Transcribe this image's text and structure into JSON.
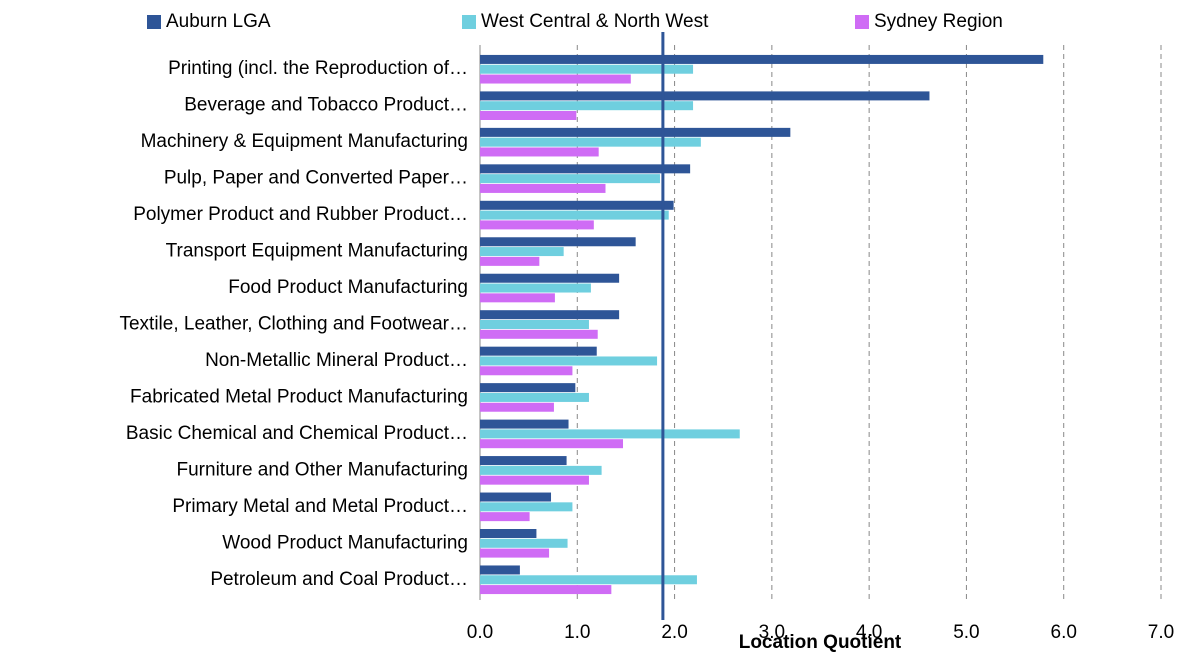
{
  "chart_data": {
    "type": "hbar",
    "x_label": "Location Quotient",
    "categories": [
      "Printing (incl. the Reproduction of…",
      "Beverage and Tobacco Product…",
      "Machinery & Equipment Manufacturing",
      "Pulp, Paper and Converted Paper…",
      "Polymer Product and Rubber Product…",
      "Transport Equipment Manufacturing",
      "Food Product Manufacturing",
      "Textile, Leather, Clothing and Footwear…",
      "Non-Metallic Mineral Product…",
      "Fabricated Metal Product Manufacturing",
      "Basic Chemical and Chemical Product…",
      "Furniture and Other Manufacturing",
      "Primary Metal and Metal Product…",
      "Wood Product Manufacturing",
      "Petroleum and Coal Product…"
    ],
    "series": [
      {
        "name": "Auburn LGA",
        "color": "#2e5597",
        "values": [
          5.79,
          4.62,
          3.19,
          2.16,
          1.99,
          1.6,
          1.43,
          1.43,
          1.2,
          0.98,
          0.91,
          0.89,
          0.73,
          0.58,
          0.41
        ]
      },
      {
        "name": "West Central & North West",
        "color": "#6fcfdf",
        "values": [
          2.19,
          2.19,
          2.27,
          1.85,
          1.94,
          0.86,
          1.14,
          1.12,
          1.82,
          1.12,
          2.67,
          1.25,
          0.95,
          0.9,
          2.23
        ]
      },
      {
        "name": "Sydney Region",
        "color": "#cf6cf5",
        "values": [
          1.55,
          0.99,
          1.22,
          1.29,
          1.17,
          0.61,
          0.77,
          1.21,
          0.95,
          0.76,
          1.47,
          1.12,
          0.51,
          0.71,
          1.35
        ]
      }
    ],
    "reference_line": {
      "value": 1.88,
      "color": "#2e5597"
    },
    "xlim": [
      0,
      7
    ],
    "xticks": [
      {
        "value": 0,
        "label": "0.0"
      },
      {
        "value": 1,
        "label": "1.0"
      },
      {
        "value": 2,
        "label": "2.0"
      },
      {
        "value": 3,
        "label": "3.0"
      },
      {
        "value": 4,
        "label": "4.0"
      },
      {
        "value": 5,
        "label": "5.0"
      },
      {
        "value": 6,
        "label": "6.0"
      },
      {
        "value": 7,
        "label": "7.0"
      }
    ],
    "grid": true,
    "legend": "top"
  }
}
